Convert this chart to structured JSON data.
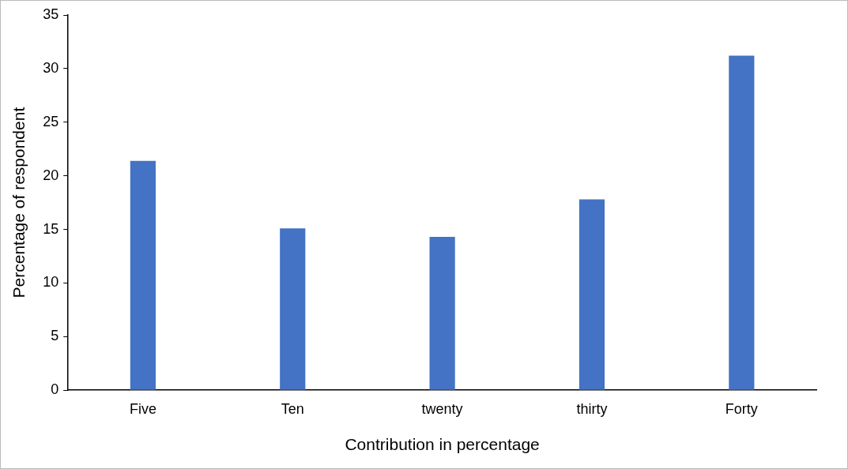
{
  "chart_data": {
    "type": "bar",
    "xlabel": "Contribution in percentage",
    "ylabel": "Percentage of respondent",
    "categories": [
      "Five",
      "Ten",
      "twenty",
      "thirty",
      "Forty"
    ],
    "values": [
      21.4,
      15.1,
      14.3,
      17.8,
      31.2
    ],
    "color": "#4472c4",
    "ylim": [
      0,
      35
    ],
    "yticks": [
      0,
      5,
      10,
      15,
      20,
      25,
      30,
      35
    ],
    "grid": false,
    "legend": false
  }
}
